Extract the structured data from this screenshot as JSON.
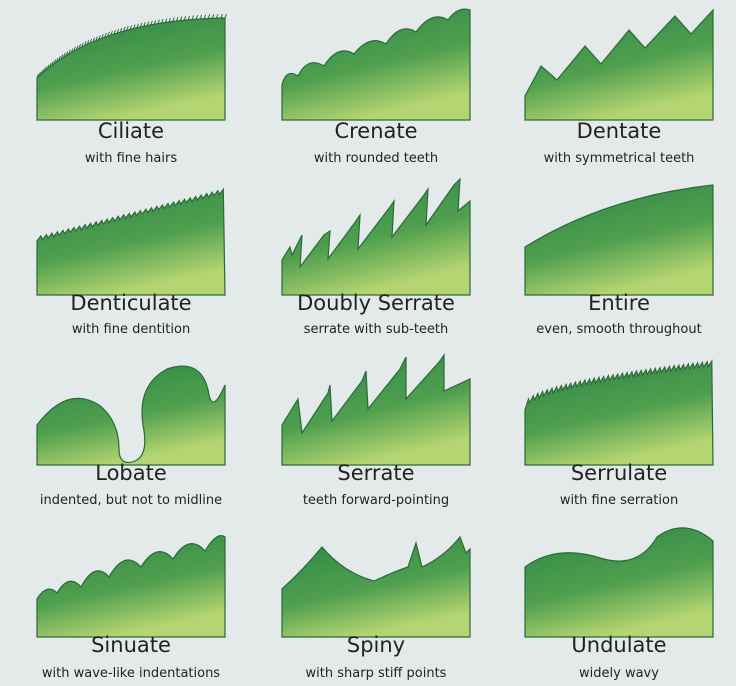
{
  "items": [
    {
      "name": "Ciliate",
      "description": "with fine hairs"
    },
    {
      "name": "Crenate",
      "description": "with rounded teeth"
    },
    {
      "name": "Dentate",
      "description": "with symmetrical teeth"
    },
    {
      "name": "Denticulate",
      "description": "with fine dentition"
    },
    {
      "name": "Doubly Serrate",
      "description": "serrate with sub-teeth"
    },
    {
      "name": "Entire",
      "description": "even, smooth throughout"
    },
    {
      "name": "Lobate",
      "description": "indented, but not to midline"
    },
    {
      "name": "Serrate",
      "description": "teeth forward-pointing"
    },
    {
      "name": "Serrulate",
      "description": "with fine serration"
    },
    {
      "name": "Sinuate",
      "description": "with wave-like indentations"
    },
    {
      "name": "Spiny",
      "description": "with sharp stiff points"
    },
    {
      "name": "Undulate",
      "description": "widely wavy"
    }
  ]
}
